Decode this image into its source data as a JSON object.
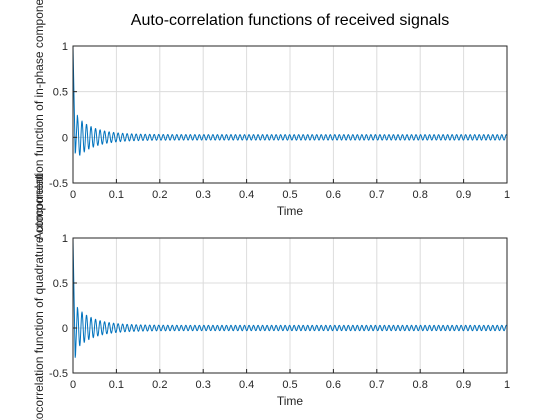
{
  "figure": {
    "title": "Auto-correlation functions of received signals",
    "line_color": "#0072BD",
    "grid": true
  },
  "chart_data": [
    {
      "type": "line",
      "xlabel": "Time",
      "ylabel": "Autocorrelation function of in-phase component",
      "xlim": [
        0,
        1
      ],
      "ylim": [
        -0.5,
        1
      ],
      "xticks": [
        "0",
        "0.1",
        "0.2",
        "0.3",
        "0.4",
        "0.5",
        "0.6",
        "0.7",
        "0.8",
        "0.9",
        "1"
      ],
      "yticks": [
        "-0.5",
        "0",
        "0.5",
        "1"
      ],
      "signal": {
        "initial_value": 1.0,
        "first_minimum": -0.22,
        "second_peak": 0.28,
        "settled_amplitude": 0.03,
        "decay_time_constant": 0.04,
        "oscillation_period": 0.0104
      }
    },
    {
      "type": "line",
      "xlabel": "Time",
      "ylabel": "Autocorrelation function of quadrature component",
      "xlim": [
        0,
        1
      ],
      "ylim": [
        -0.5,
        1
      ],
      "xticks": [
        "0",
        "0.1",
        "0.2",
        "0.3",
        "0.4",
        "0.5",
        "0.6",
        "0.7",
        "0.8",
        "0.9",
        "1"
      ],
      "yticks": [
        "-0.5",
        "0",
        "0.5",
        "1"
      ],
      "signal": {
        "initial_value": 1.0,
        "first_minimum": -0.38,
        "second_peak": 0.28,
        "settled_amplitude": 0.03,
        "decay_time_constant": 0.04,
        "oscillation_period": 0.0104
      }
    }
  ]
}
